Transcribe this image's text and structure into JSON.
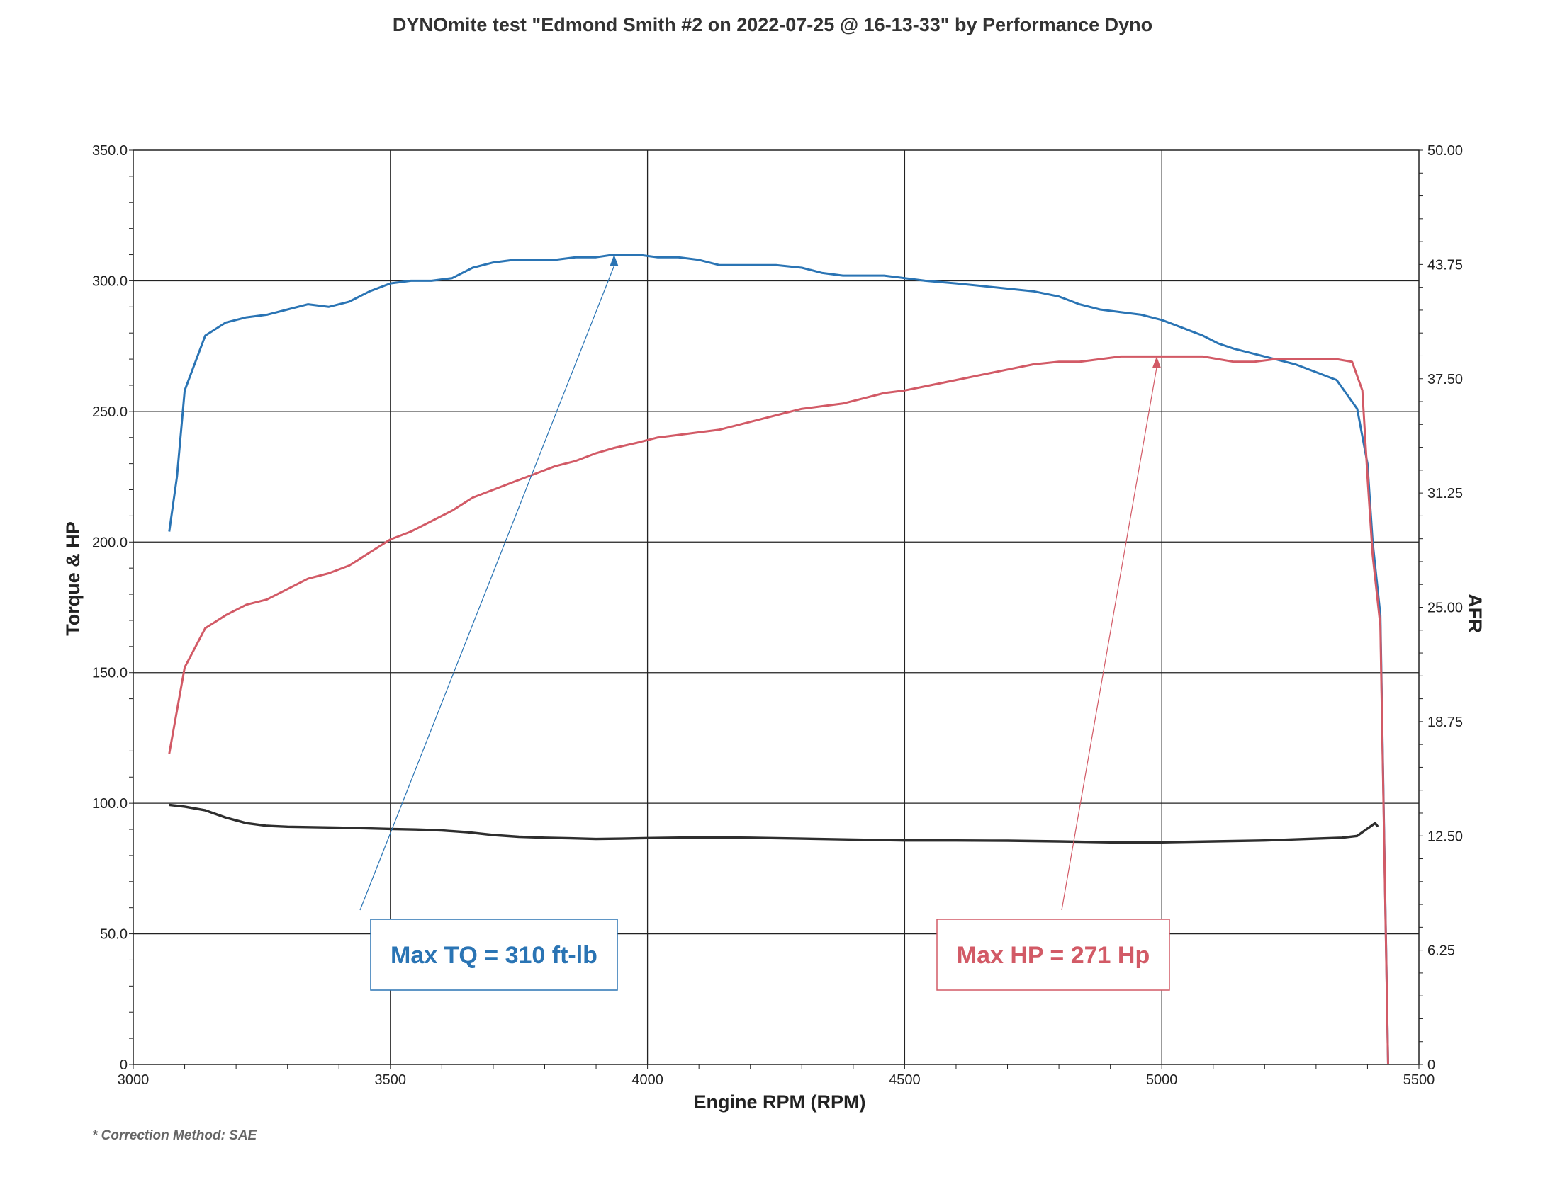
{
  "chart_data": {
    "type": "line",
    "title": "DYNOmite test \"Edmond Smith #2 on 2022-07-25 @ 16-13-33\" by Performance Dyno",
    "xlabel": "Engine RPM (RPM)",
    "ylabel": "Torque & HP",
    "y2label": "AFR",
    "xlim": [
      3000,
      5500
    ],
    "ylim": [
      0,
      350
    ],
    "y2lim": [
      0,
      50
    ],
    "x_ticks": [
      "3000",
      "3500",
      "4000",
      "4500",
      "5000",
      "5500"
    ],
    "y_ticks": [
      "0",
      "50.0",
      "100.0",
      "150.0",
      "200.0",
      "250.0",
      "300.0",
      "350.0"
    ],
    "y2_ticks": [
      "0",
      "6.25",
      "12.50",
      "18.75",
      "25.00",
      "31.25",
      "37.50",
      "43.75",
      "50.00"
    ],
    "grid": true,
    "series": [
      {
        "color": "#2a74b4",
        "axis": "left",
        "x": [
          3070,
          3085,
          3100,
          3140,
          3180,
          3220,
          3260,
          3300,
          3340,
          3380,
          3420,
          3460,
          3500,
          3540,
          3580,
          3620,
          3660,
          3700,
          3740,
          3780,
          3820,
          3860,
          3900,
          3935,
          3980,
          4020,
          4060,
          4100,
          4140,
          4160,
          4200,
          4250,
          4300,
          4340,
          4380,
          4420,
          4460,
          4500,
          4540,
          4600,
          4650,
          4700,
          4750,
          4800,
          4840,
          4880,
          4920,
          4960,
          5000,
          5040,
          5080,
          5110,
          5140,
          5180,
          5220,
          5260,
          5300,
          5340,
          5380,
          5400,
          5410,
          5425,
          5440
        ],
        "values": [
          204,
          225,
          258,
          279,
          284,
          286,
          287,
          289,
          291,
          290,
          292,
          296,
          299,
          300,
          300,
          301,
          305,
          307,
          308,
          308,
          308,
          309,
          309,
          310,
          310,
          309,
          309,
          308,
          306,
          306,
          306,
          306,
          305,
          303,
          302,
          302,
          302,
          301,
          300,
          299,
          298,
          297,
          296,
          294,
          291,
          289,
          288,
          287,
          285,
          282,
          279,
          276,
          274,
          272,
          270,
          268,
          265,
          262,
          251,
          230,
          200,
          172,
          0
        ]
      },
      {
        "color": "#d25a66",
        "axis": "left",
        "x": [
          3070,
          3100,
          3140,
          3180,
          3220,
          3260,
          3300,
          3340,
          3380,
          3420,
          3460,
          3500,
          3540,
          3580,
          3620,
          3660,
          3700,
          3740,
          3780,
          3820,
          3860,
          3900,
          3935,
          3980,
          4020,
          4060,
          4100,
          4140,
          4180,
          4220,
          4260,
          4300,
          4340,
          4380,
          4420,
          4460,
          4500,
          4550,
          4600,
          4650,
          4700,
          4750,
          4800,
          4840,
          4880,
          4920,
          4960,
          5000,
          5040,
          5080,
          5110,
          5140,
          5180,
          5220,
          5260,
          5300,
          5340,
          5370,
          5390,
          5400,
          5410,
          5425,
          5440
        ],
        "values": [
          119,
          152,
          167,
          172,
          176,
          178,
          182,
          186,
          188,
          191,
          196,
          201,
          204,
          208,
          212,
          217,
          220,
          223,
          226,
          229,
          231,
          234,
          236,
          238,
          240,
          241,
          242,
          243,
          245,
          247,
          249,
          251,
          252,
          253,
          255,
          257,
          258,
          260,
          262,
          264,
          266,
          268,
          269,
          269,
          270,
          271,
          271,
          271,
          271,
          271,
          270,
          269,
          269,
          270,
          270,
          270,
          270,
          269,
          258,
          225,
          195,
          168,
          0
        ]
      },
      {
        "color": "#2e2e2e",
        "axis": "right",
        "x": [
          3070,
          3100,
          3140,
          3180,
          3220,
          3260,
          3300,
          3350,
          3400,
          3450,
          3500,
          3550,
          3600,
          3650,
          3700,
          3750,
          3800,
          3850,
          3900,
          3950,
          4000,
          4100,
          4200,
          4300,
          4400,
          4500,
          4600,
          4700,
          4800,
          4900,
          5000,
          5100,
          5200,
          5300,
          5350,
          5380,
          5400,
          5415,
          5420
        ],
        "values": [
          14.2,
          14.1,
          13.9,
          13.5,
          13.2,
          13.05,
          13.0,
          12.98,
          12.95,
          12.92,
          12.88,
          12.85,
          12.8,
          12.7,
          12.55,
          12.45,
          12.4,
          12.37,
          12.33,
          12.35,
          12.38,
          12.42,
          12.4,
          12.35,
          12.3,
          12.25,
          12.25,
          12.24,
          12.2,
          12.15,
          12.15,
          12.2,
          12.25,
          12.35,
          12.4,
          12.5,
          12.9,
          13.2,
          13.0
        ]
      }
    ],
    "annotations": [
      {
        "text": "Max TQ =  310 ft-lb",
        "color": "#2a74b4",
        "x": 3935,
        "y": 310
      },
      {
        "text": "Max HP =  271 Hp",
        "color": "#d25a66",
        "x": 4990,
        "y": 271
      }
    ],
    "footnote": "* Correction Method: SAE"
  }
}
